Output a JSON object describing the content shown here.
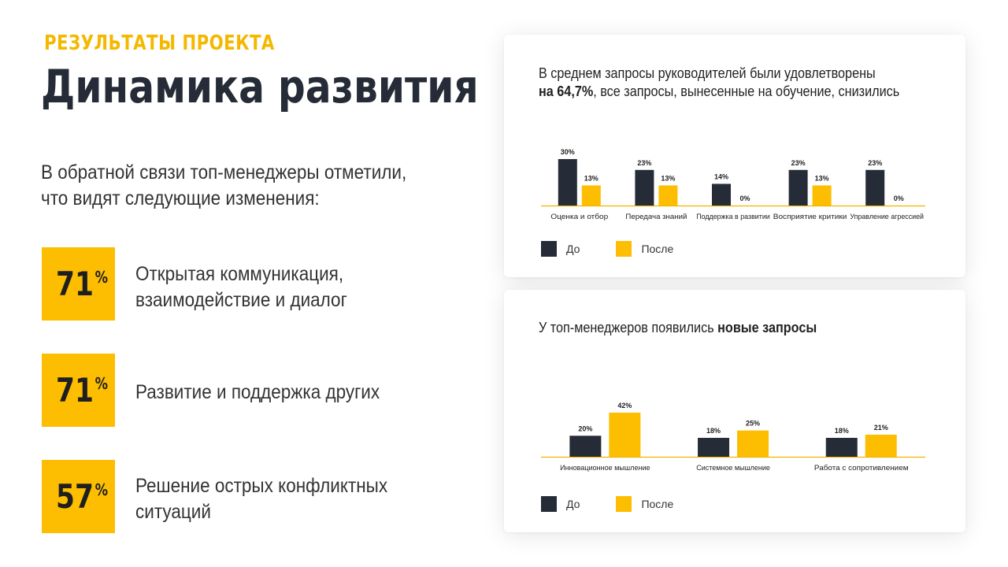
{
  "header": {
    "eyebrow": "Результаты проекта",
    "title": "Динамика развития"
  },
  "intro": {
    "line1": "В обратной связи топ-менеджеры отметили,",
    "line2": "что видят следующие изменения:"
  },
  "stats": [
    {
      "value": "71",
      "unit": "%",
      "line1": "Открытая коммуникация,",
      "line2": "взаимодействие и диалог"
    },
    {
      "value": "71",
      "unit": "%",
      "line1": "Развитие и поддержка других",
      "line2": ""
    },
    {
      "value": "57",
      "unit": "%",
      "line1": "Решение острых конфликтных",
      "line2": "ситуаций"
    }
  ],
  "colors": {
    "accent": "#fdbd00",
    "dark": "#262c37",
    "axis": "#f0b400"
  },
  "card1": {
    "title_line1": "В среднем запросы руководителей  были удовлетворены",
    "title_bold": "на 64,7%",
    "title_rest": ", все запросы, вынесенные  на обучение,  снизились",
    "legend_before": "До",
    "legend_after": "После"
  },
  "card2": {
    "title_plain": "У топ-менеджеров  появились ",
    "title_bold": "новые запросы",
    "legend_before": "До",
    "legend_after": "После"
  },
  "chart_data": [
    {
      "type": "bar",
      "categories": [
        "Оценка и отбор",
        "Передача знаний",
        "Поддержка в развитии",
        "Восприятие критики",
        "Управление агрессией"
      ],
      "series": [
        {
          "name": "До",
          "color": "#262c37",
          "values": [
            30,
            23,
            14,
            23,
            23
          ],
          "labels": [
            "30%",
            "23%",
            "14%",
            "23%",
            "23%"
          ]
        },
        {
          "name": "После",
          "color": "#fdbd00",
          "values": [
            13,
            13,
            0,
            13,
            0
          ],
          "labels": [
            "13%",
            "13%",
            "0%",
            "13%",
            "0%"
          ]
        }
      ],
      "ylim": [
        0,
        30
      ],
      "legend": "bottom-left"
    },
    {
      "type": "bar",
      "categories": [
        "Инновационное мышление",
        "Системное мышление",
        "Работа с сопротивлением"
      ],
      "series": [
        {
          "name": "До",
          "color": "#262c37",
          "values": [
            20,
            18,
            18
          ],
          "labels": [
            "20%",
            "18%",
            "18%"
          ]
        },
        {
          "name": "После",
          "color": "#fdbd00",
          "values": [
            42,
            25,
            21
          ],
          "labels": [
            "42%",
            "25%",
            "21%"
          ]
        }
      ],
      "ylim": [
        0,
        42
      ],
      "legend": "bottom-left"
    }
  ]
}
